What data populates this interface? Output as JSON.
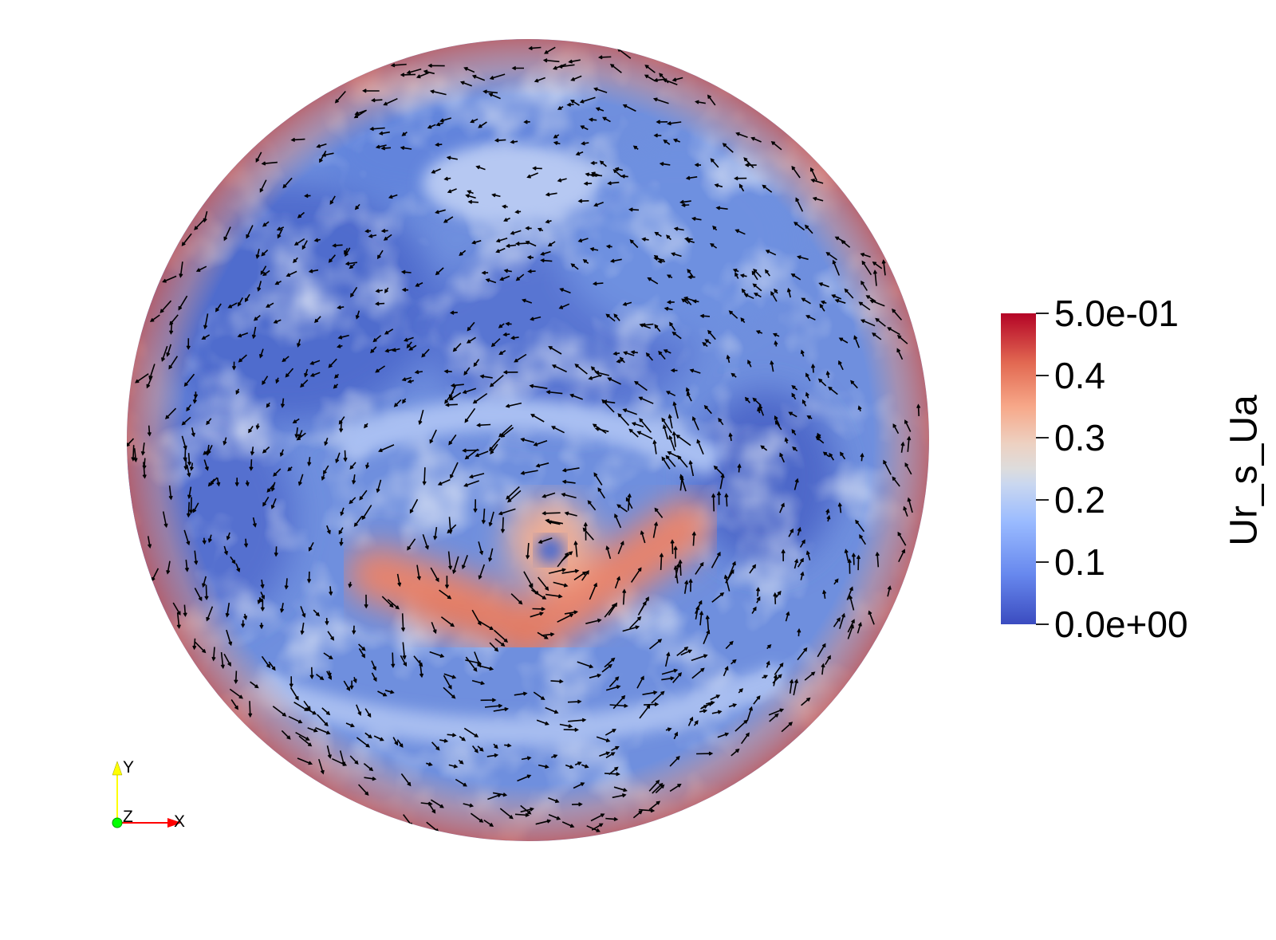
{
  "colorbar": {
    "title": "Ur_s_Ua",
    "ticks": [
      {
        "label": "5.0e-01",
        "value": 0.5
      },
      {
        "label": "0.4",
        "value": 0.4
      },
      {
        "label": "0.3",
        "value": 0.3
      },
      {
        "label": "0.2",
        "value": 0.2
      },
      {
        "label": "0.1",
        "value": 0.1
      },
      {
        "label": "0.0e+00",
        "value": 0.0
      }
    ],
    "range": [
      0.0,
      0.5
    ],
    "colors": {
      "low": "#3b4cc0",
      "mid": "#dddcdc",
      "high": "#b40426"
    }
  },
  "axes_triad": {
    "y_label": "Y",
    "z_label": "Z",
    "x_label": "X",
    "colors": {
      "x": "#ff0000",
      "y": "#ffff00",
      "z": "#00ff00"
    }
  },
  "field": {
    "colormap": "cool-warm",
    "glyph_color": "#000000"
  }
}
